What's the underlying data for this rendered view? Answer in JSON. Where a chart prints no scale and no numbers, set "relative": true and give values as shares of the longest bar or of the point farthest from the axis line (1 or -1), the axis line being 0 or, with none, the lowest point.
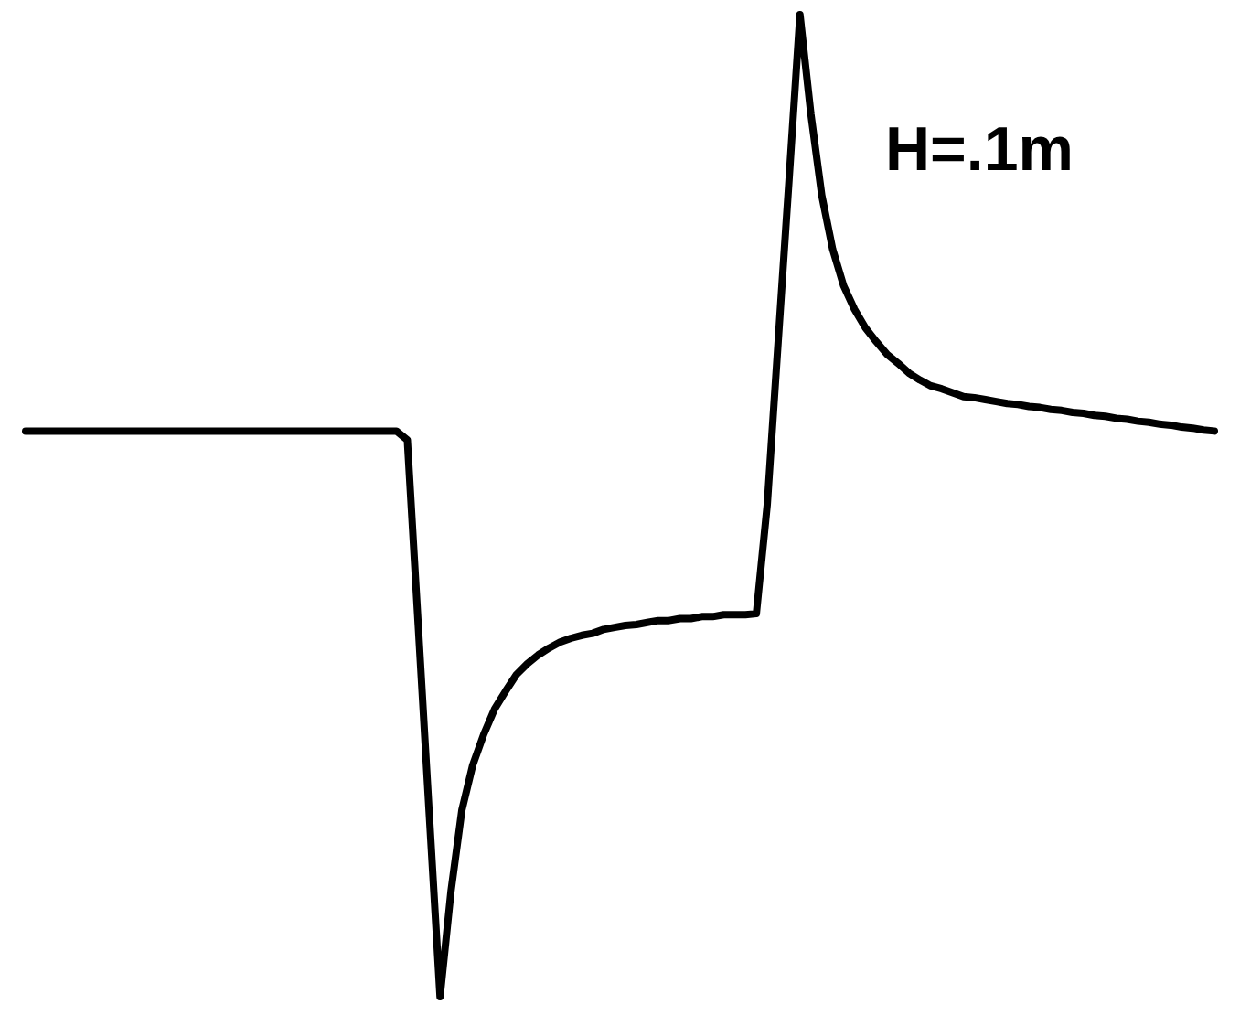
{
  "chart_data": {
    "type": "line",
    "relative": true,
    "tick_labels": false,
    "legend": false,
    "marker": "none",
    "line_style": "solid",
    "categories": [
      null,
      null,
      null,
      null,
      null,
      null,
      null,
      null,
      null,
      null,
      null,
      null,
      null,
      null,
      null,
      null,
      null,
      null,
      null,
      null,
      null,
      null,
      null,
      null,
      null,
      null,
      null,
      null,
      null,
      null,
      null,
      null,
      null,
      null,
      null,
      null,
      null,
      null,
      null,
      null,
      null,
      null,
      null,
      null,
      null,
      null,
      null,
      null,
      null,
      null,
      null,
      null,
      null,
      null,
      null,
      null,
      null,
      null,
      null,
      null,
      null,
      null,
      null,
      null,
      null,
      null,
      null,
      null,
      null,
      null,
      null,
      null,
      null,
      null,
      null,
      null,
      null,
      null,
      null,
      null,
      null,
      null,
      null,
      null,
      null,
      null,
      null,
      null,
      null,
      null,
      null,
      null,
      null,
      null,
      null,
      null,
      null,
      null,
      null,
      null,
      null,
      null,
      null,
      null,
      null,
      null,
      null,
      null,
      null,
      null
    ],
    "series": [
      {
        "color": "#000000",
        "values": [
          0.576,
          0.576,
          0.576,
          0.576,
          0.576,
          0.576,
          0.576,
          0.576,
          0.576,
          0.576,
          0.576,
          0.576,
          0.576,
          0.576,
          0.576,
          0.576,
          0.576,
          0.576,
          0.576,
          0.576,
          0.576,
          0.576,
          0.576,
          0.576,
          0.576,
          0.576,
          0.576,
          0.576,
          0.576,
          0.576,
          0.576,
          0.576,
          0.576,
          0.576,
          0.576,
          0.567,
          0.378,
          0.188,
          0,
          0.107,
          0.19,
          0.236,
          0.267,
          0.293,
          0.311,
          0.328,
          0.339,
          0.348,
          0.355,
          0.361,
          0.365,
          0.368,
          0.37,
          0.374,
          0.376,
          0.378,
          0.379,
          0.381,
          0.383,
          0.383,
          0.385,
          0.385,
          0.387,
          0.387,
          0.389,
          0.389,
          0.389,
          0.39,
          0.501,
          0.667,
          0.832,
          1,
          0.899,
          0.816,
          0.761,
          0.724,
          0.7,
          0.681,
          0.667,
          0.654,
          0.645,
          0.635,
          0.628,
          0.622,
          0.619,
          0.615,
          0.611,
          0.61,
          0.608,
          0.606,
          0.604,
          0.603,
          0.601,
          0.6,
          0.598,
          0.597,
          0.595,
          0.594,
          0.592,
          0.591,
          0.589,
          0.588,
          0.586,
          0.585,
          0.583,
          0.582,
          0.58,
          0.579,
          0.577,
          0.576
        ]
      }
    ],
    "annotations": [
      "H=.1m"
    ]
  }
}
